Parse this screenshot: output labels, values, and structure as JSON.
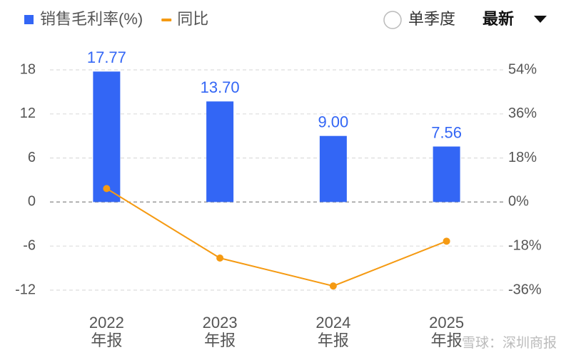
{
  "chart_data": {
    "type": "bar_line",
    "categories": [
      "2022\n年报",
      "2023\n年报",
      "2024\n年报",
      "2025\n年报"
    ],
    "series": [
      {
        "name": "销售毛利率(%)",
        "type": "bar",
        "color": "#3366f5",
        "values": [
          17.77,
          13.7,
          9.0,
          7.56
        ],
        "value_labels": [
          "17.77",
          "13.70",
          "9.00",
          "7.56"
        ]
      },
      {
        "name": "同比",
        "type": "line",
        "axis": "y2",
        "color": "#f59a12",
        "values": [
          5.5,
          -22.9,
          -34.3,
          -16.0
        ]
      }
    ],
    "ylim": [
      -12,
      18
    ],
    "yticks": [
      -12,
      -6,
      0,
      6,
      12,
      18
    ],
    "y2lim": [
      -36,
      54
    ],
    "y2ticks": [
      {
        "value": -36,
        "label": "-36%"
      },
      {
        "value": -18,
        "label": "-18%"
      },
      {
        "value": 0,
        "label": "0%"
      },
      {
        "value": 18,
        "label": "18%"
      },
      {
        "value": 36,
        "label": "36%"
      },
      {
        "value": 54,
        "label": "54%"
      }
    ],
    "grid": true,
    "period_option": "单季度",
    "sort_option": "最新",
    "watermark": "雪球：深圳商报"
  }
}
